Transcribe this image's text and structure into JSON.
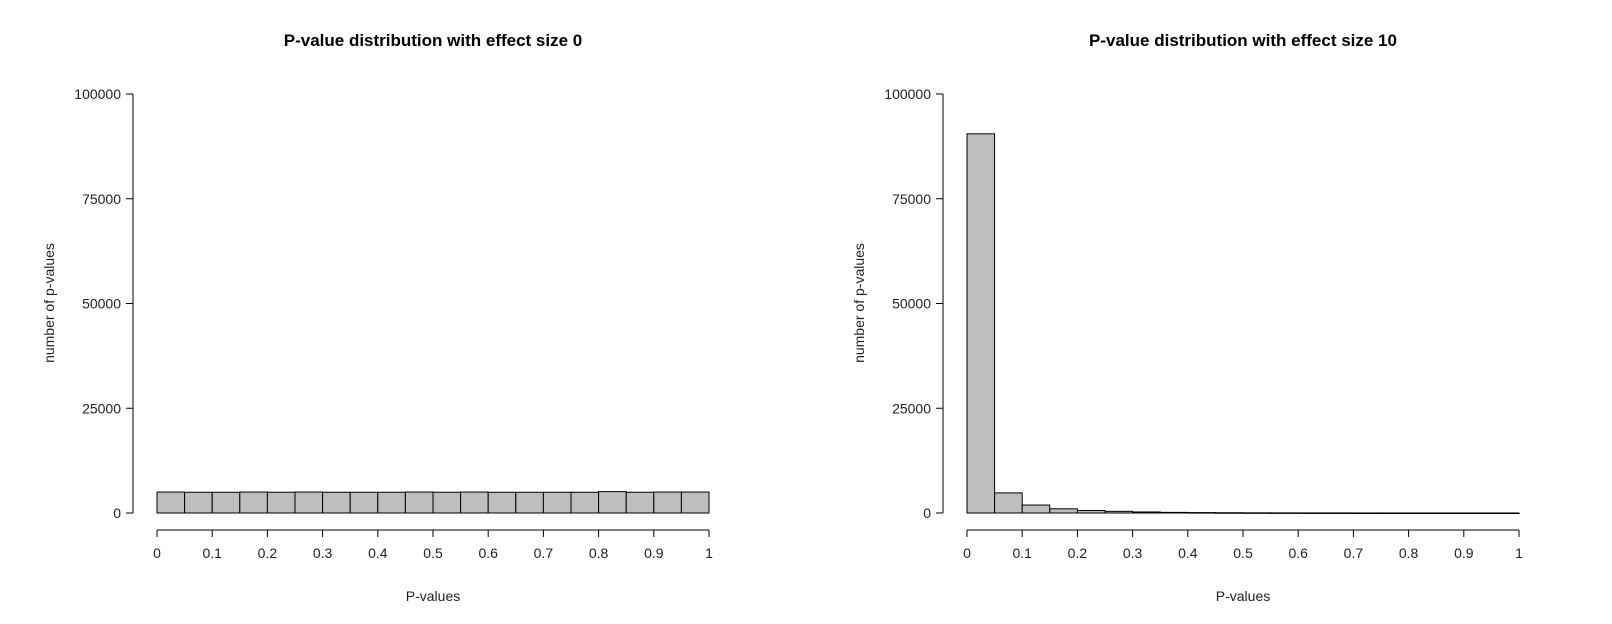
{
  "chart_data": [
    {
      "type": "bar",
      "title": "P-value distribution with effect size 0",
      "xlabel": "P-values",
      "ylabel": "number of p-values",
      "xlim": [
        0,
        1
      ],
      "ylim": [
        0,
        100000
      ],
      "xticks": [
        "0",
        "0.1",
        "0.2",
        "0.3",
        "0.4",
        "0.5",
        "0.6",
        "0.7",
        "0.8",
        "0.9",
        "1"
      ],
      "yticks": [
        "0",
        "25000",
        "50000",
        "75000",
        "100000"
      ],
      "bin_edges": [
        0,
        0.05,
        0.1,
        0.15,
        0.2,
        0.25,
        0.3,
        0.35,
        0.4,
        0.45,
        0.5,
        0.55,
        0.6,
        0.65,
        0.7,
        0.75,
        0.8,
        0.85,
        0.9,
        0.95,
        1.0
      ],
      "values": [
        5000,
        4950,
        4950,
        5000,
        4950,
        5000,
        4950,
        4950,
        4950,
        5000,
        4950,
        5000,
        4950,
        4950,
        4950,
        4950,
        5100,
        4950,
        5000,
        5000
      ]
    },
    {
      "type": "bar",
      "title": "P-value distribution with effect size 10",
      "xlabel": "P-values",
      "ylabel": "number of p-values",
      "xlim": [
        0,
        1
      ],
      "ylim": [
        0,
        100000
      ],
      "xticks": [
        "0",
        "0.1",
        "0.2",
        "0.3",
        "0.4",
        "0.5",
        "0.6",
        "0.7",
        "0.8",
        "0.9",
        "1"
      ],
      "yticks": [
        "0",
        "25000",
        "50000",
        "75000",
        "100000"
      ],
      "bin_edges": [
        0,
        0.05,
        0.1,
        0.15,
        0.2,
        0.25,
        0.3,
        0.35,
        0.4,
        0.45,
        0.5,
        0.55,
        0.6,
        0.65,
        0.7,
        0.75,
        0.8,
        0.85,
        0.9,
        0.95,
        1.0
      ],
      "values": [
        90500,
        4800,
        1900,
        1000,
        600,
        400,
        250,
        150,
        100,
        60,
        40,
        30,
        20,
        15,
        10,
        8,
        5,
        4,
        3,
        2
      ]
    }
  ]
}
